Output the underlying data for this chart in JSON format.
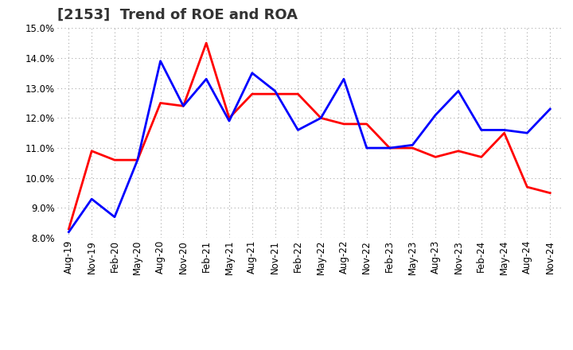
{
  "title": "[2153]  Trend of ROE and ROA",
  "ylim": [
    0.08,
    0.15
  ],
  "yticks": [
    0.08,
    0.09,
    0.1,
    0.11,
    0.12,
    0.13,
    0.14,
    0.15
  ],
  "labels": [
    "Aug-19",
    "Nov-19",
    "Feb-20",
    "May-20",
    "Aug-20",
    "Nov-20",
    "Feb-21",
    "May-21",
    "Aug-21",
    "Nov-21",
    "Feb-22",
    "May-22",
    "Aug-22",
    "Nov-22",
    "Feb-23",
    "May-23",
    "Aug-23",
    "Nov-23",
    "Feb-24",
    "May-24",
    "Aug-24",
    "Nov-24"
  ],
  "ROE": [
    0.083,
    0.109,
    0.106,
    0.106,
    0.125,
    0.124,
    0.145,
    0.12,
    0.128,
    0.128,
    0.128,
    0.12,
    0.118,
    0.118,
    0.11,
    0.11,
    0.107,
    0.109,
    0.107,
    0.115,
    0.097,
    0.095
  ],
  "ROA": [
    0.082,
    0.093,
    0.087,
    0.106,
    0.139,
    0.124,
    0.133,
    0.119,
    0.135,
    0.129,
    0.116,
    0.12,
    0.133,
    0.11,
    0.11,
    0.111,
    0.121,
    0.129,
    0.116,
    0.116,
    0.115,
    0.123
  ],
  "roe_color": "#ff0000",
  "roa_color": "#0000ff",
  "bg_color": "#ffffff",
  "grid_color": "#aaaaaa",
  "title_fontsize": 13,
  "tick_fontsize": 8.5,
  "legend_fontsize": 10,
  "linewidth": 2.0
}
